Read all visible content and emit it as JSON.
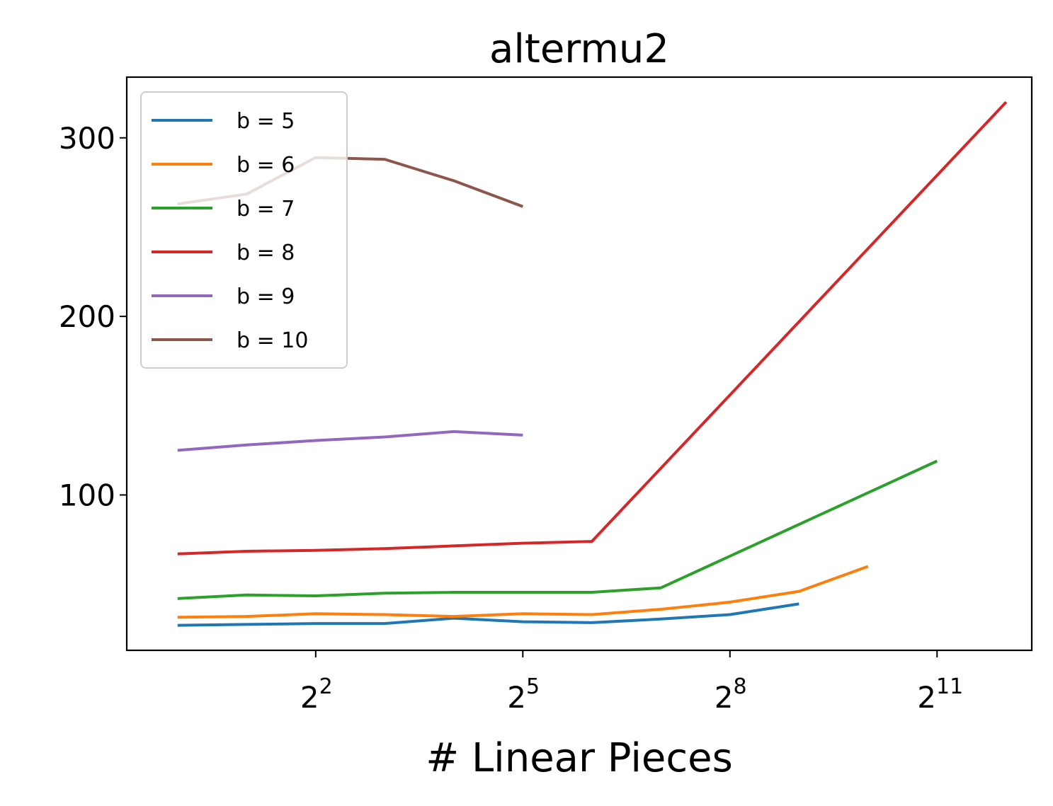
{
  "chart_data": {
    "type": "line",
    "title": "altermu2",
    "xlabel": "# Linear Pieces",
    "ylabel": "",
    "x_scale": "log2",
    "x_ticks": [
      {
        "base": "2",
        "exp": "2",
        "value": 4
      },
      {
        "base": "2",
        "exp": "5",
        "value": 32
      },
      {
        "base": "2",
        "exp": "8",
        "value": 256
      },
      {
        "base": "2",
        "exp": "11",
        "value": 2048
      }
    ],
    "y_ticks": [
      100,
      200,
      300
    ],
    "xlim": [
      0.6,
      5300
    ],
    "ylim": [
      13,
      334
    ],
    "grid": false,
    "legend_position": "top-left",
    "series": [
      {
        "name": "b = 5",
        "color": "#1f77b4",
        "x": [
          1,
          2,
          4,
          8,
          16,
          32,
          64,
          128,
          256,
          512
        ],
        "y": [
          27,
          27.5,
          28,
          28,
          31,
          29,
          28.5,
          30.5,
          33,
          39
        ]
      },
      {
        "name": "b = 6",
        "color": "#ff7f0e",
        "x": [
          1,
          2,
          4,
          8,
          16,
          32,
          64,
          128,
          256,
          512,
          1024
        ],
        "y": [
          31.5,
          32,
          33.5,
          33,
          32,
          33.5,
          33,
          36,
          40,
          46,
          60
        ]
      },
      {
        "name": "b = 7",
        "color": "#2ca02c",
        "x": [
          1,
          2,
          4,
          8,
          16,
          32,
          64,
          128,
          2048
        ],
        "y": [
          42,
          44,
          43.5,
          45,
          45.5,
          45.5,
          45.5,
          48,
          119
        ]
      },
      {
        "name": "b = 8",
        "color": "#d62728",
        "x": [
          1,
          2,
          4,
          8,
          16,
          32,
          64,
          4096
        ],
        "y": [
          67,
          68.5,
          69,
          70,
          71.5,
          73,
          74,
          320
        ]
      },
      {
        "name": "b = 9",
        "color": "#9467bd",
        "x": [
          1,
          2,
          4,
          8,
          16,
          32
        ],
        "y": [
          125,
          128,
          130.5,
          132.5,
          135.5,
          133.5
        ]
      },
      {
        "name": "b = 10",
        "color": "#8c564b",
        "x": [
          1,
          2,
          4,
          8,
          16,
          32
        ],
        "y": [
          263,
          268.5,
          289,
          288,
          276,
          261.5
        ]
      }
    ]
  }
}
